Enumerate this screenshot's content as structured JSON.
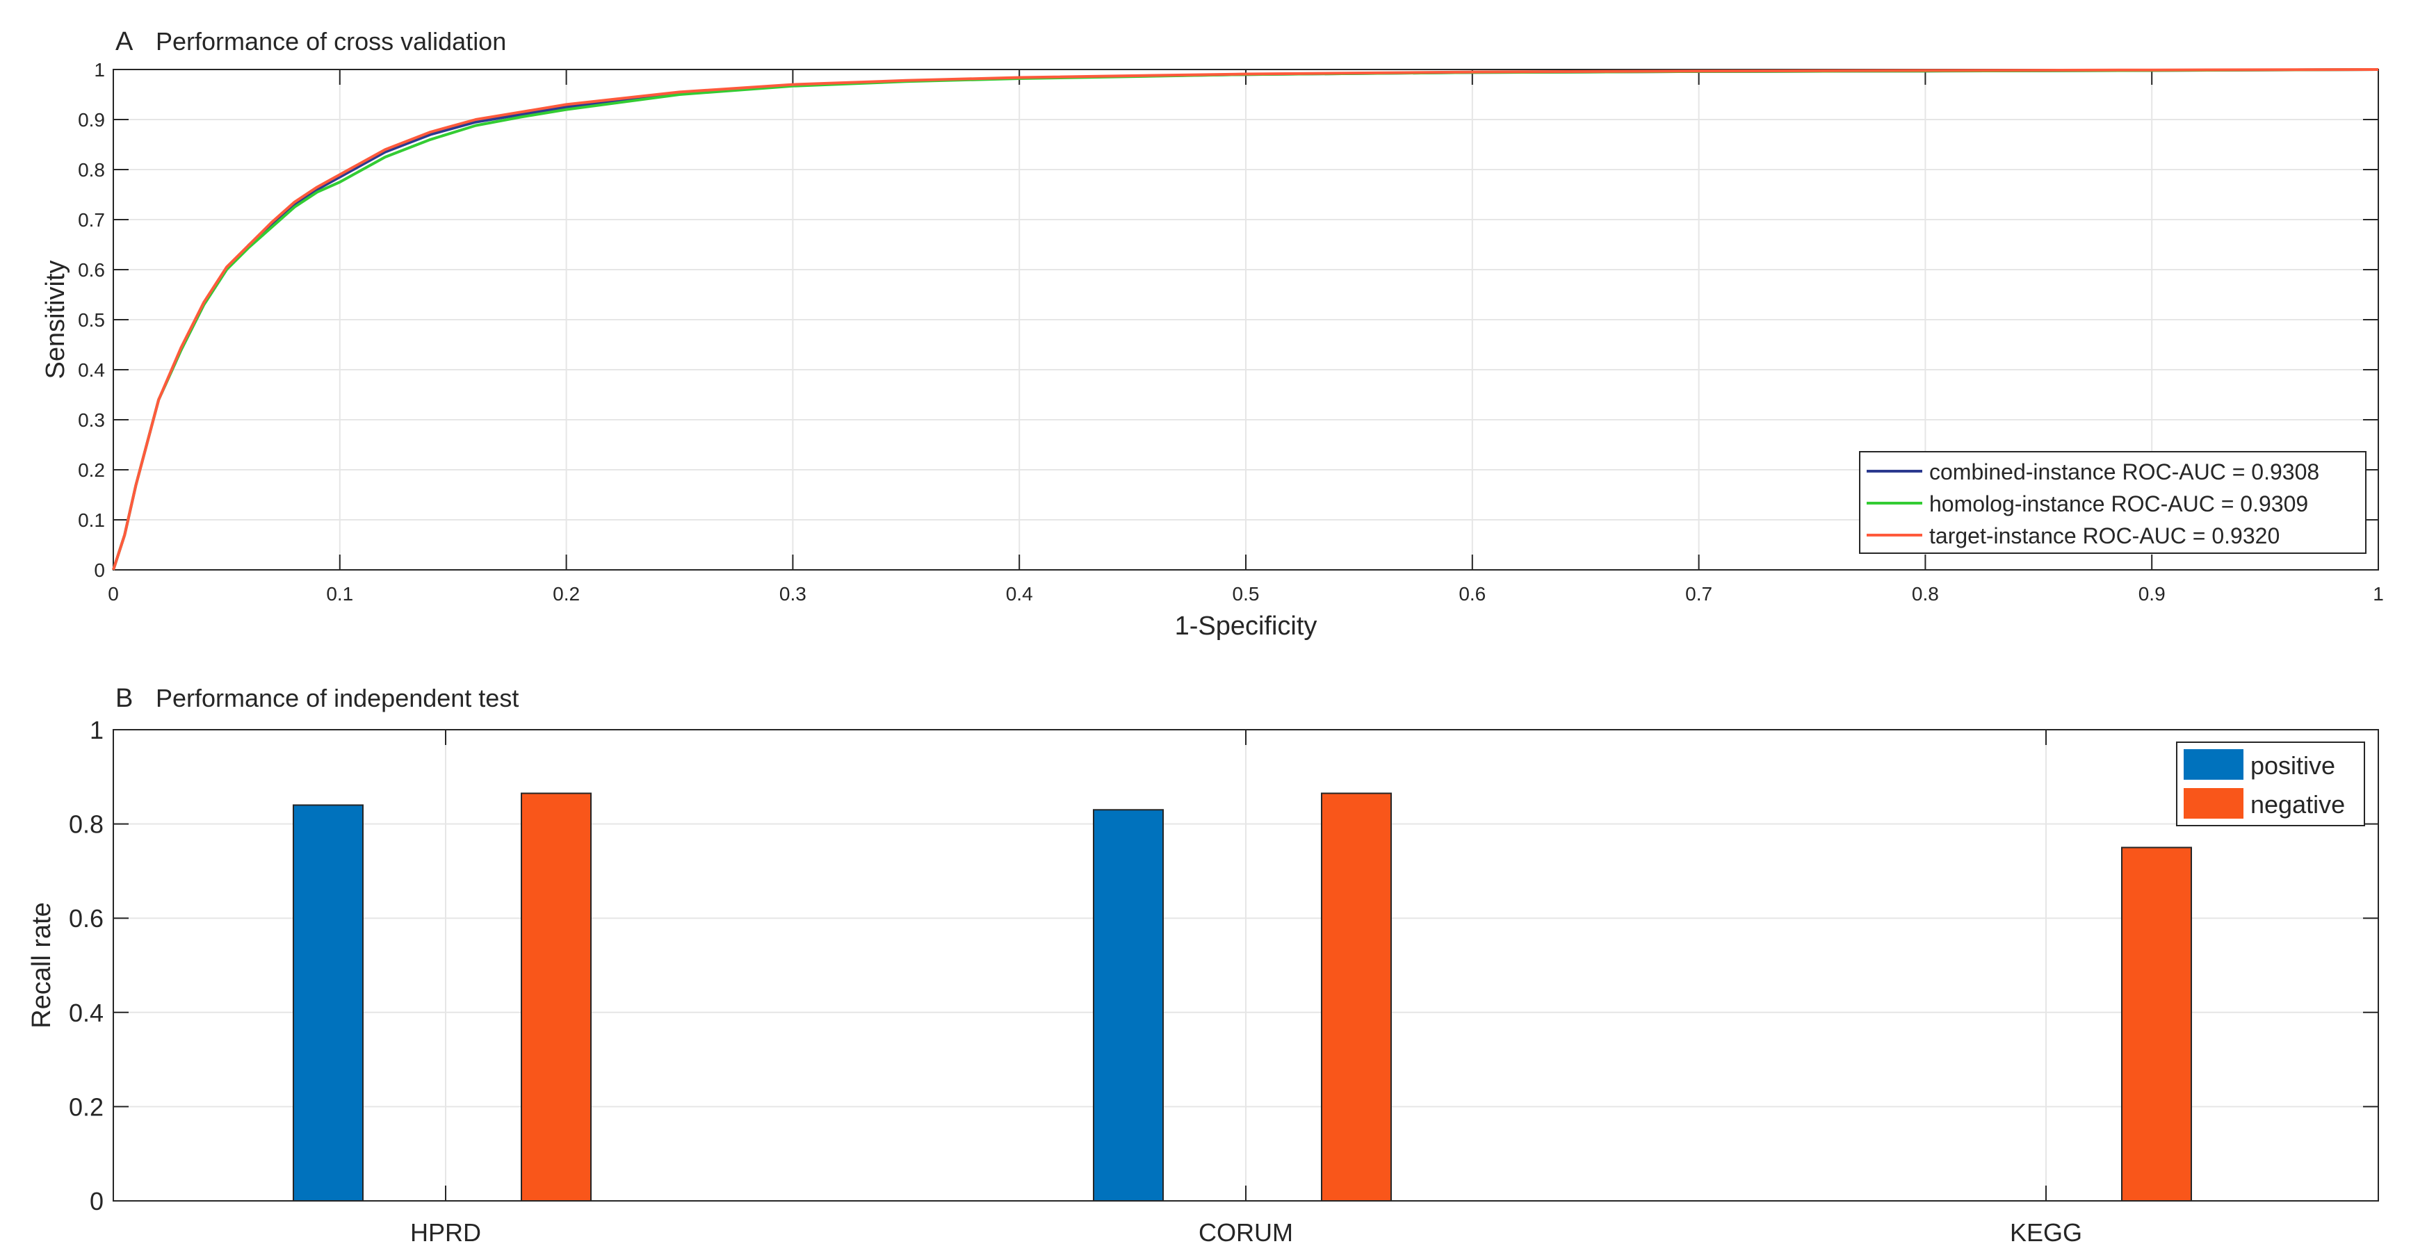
{
  "chart_data": [
    {
      "type": "line",
      "panel_letter": "A",
      "title": "Performance of cross validation",
      "xlabel": "1-Specificity",
      "ylabel": "Sensitivity",
      "xlim": [
        0,
        1
      ],
      "ylim": [
        0,
        1
      ],
      "x_ticks": [
        "0",
        "0.1",
        "0.2",
        "0.3",
        "0.4",
        "0.5",
        "0.6",
        "0.7",
        "0.8",
        "0.9",
        "1"
      ],
      "y_ticks": [
        "0",
        "0.1",
        "0.2",
        "0.3",
        "0.4",
        "0.5",
        "0.6",
        "0.7",
        "0.8",
        "0.9",
        "1"
      ],
      "grid": true,
      "legend_position": "bottom-right",
      "series": [
        {
          "name": "combined-instance ROC-AUC = 0.9308",
          "color": "#2b3a8f",
          "x": [
            0,
            0.005,
            0.01,
            0.02,
            0.03,
            0.04,
            0.05,
            0.06,
            0.07,
            0.08,
            0.09,
            0.1,
            0.11,
            0.12,
            0.14,
            0.16,
            0.18,
            0.2,
            0.25,
            0.3,
            0.35,
            0.4,
            0.5,
            0.6,
            0.7,
            0.8,
            0.9,
            1.0
          ],
          "y": [
            0,
            0.07,
            0.17,
            0.34,
            0.44,
            0.53,
            0.6,
            0.65,
            0.69,
            0.73,
            0.76,
            0.785,
            0.81,
            0.835,
            0.87,
            0.895,
            0.91,
            0.925,
            0.952,
            0.968,
            0.977,
            0.983,
            0.99,
            0.994,
            0.996,
            0.997,
            0.998,
            1.0
          ]
        },
        {
          "name": "homolog-instance ROC-AUC = 0.9309",
          "color": "#33cc33",
          "x": [
            0,
            0.005,
            0.01,
            0.02,
            0.03,
            0.04,
            0.05,
            0.06,
            0.07,
            0.08,
            0.09,
            0.1,
            0.11,
            0.12,
            0.14,
            0.16,
            0.18,
            0.2,
            0.25,
            0.3,
            0.35,
            0.4,
            0.5,
            0.6,
            0.7,
            0.8,
            0.9,
            1.0
          ],
          "y": [
            0,
            0.07,
            0.17,
            0.34,
            0.44,
            0.53,
            0.6,
            0.645,
            0.685,
            0.725,
            0.755,
            0.775,
            0.8,
            0.825,
            0.86,
            0.888,
            0.905,
            0.92,
            0.95,
            0.967,
            0.976,
            0.982,
            0.99,
            0.994,
            0.996,
            0.997,
            0.998,
            1.0
          ]
        },
        {
          "name": "target-instance ROC-AUC = 0.9320",
          "color": "#ff5a3c",
          "x": [
            0,
            0.005,
            0.01,
            0.02,
            0.03,
            0.04,
            0.05,
            0.06,
            0.07,
            0.08,
            0.09,
            0.1,
            0.11,
            0.12,
            0.14,
            0.16,
            0.18,
            0.2,
            0.25,
            0.3,
            0.35,
            0.4,
            0.5,
            0.6,
            0.7,
            0.8,
            0.9,
            1.0
          ],
          "y": [
            0,
            0.07,
            0.17,
            0.34,
            0.445,
            0.535,
            0.605,
            0.65,
            0.695,
            0.735,
            0.765,
            0.79,
            0.815,
            0.84,
            0.875,
            0.9,
            0.915,
            0.93,
            0.955,
            0.97,
            0.978,
            0.984,
            0.991,
            0.995,
            0.997,
            0.998,
            0.999,
            1.0
          ]
        }
      ]
    },
    {
      "type": "bar",
      "panel_letter": "B",
      "title": "Performance of independent test",
      "xlabel": "",
      "ylabel": "Recall rate",
      "ylim": [
        0,
        1
      ],
      "y_ticks": [
        "0",
        "0.2",
        "0.4",
        "0.6",
        "0.8",
        "1"
      ],
      "categories": [
        "HPRD",
        "CORUM",
        "KEGG"
      ],
      "grid": true,
      "legend_position": "top-right",
      "series": [
        {
          "name": "positive",
          "color": "#0072bd",
          "values": [
            0.84,
            0.83,
            null
          ]
        },
        {
          "name": "negative",
          "color": "#f9561a",
          "values": [
            0.865,
            0.865,
            0.75
          ]
        }
      ]
    }
  ]
}
